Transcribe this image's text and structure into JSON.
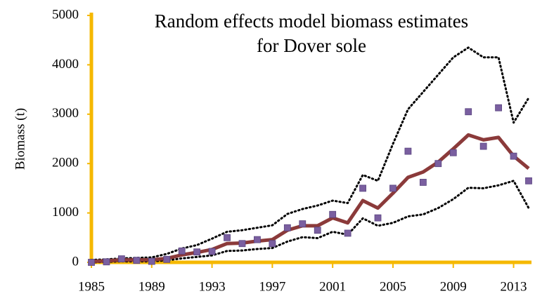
{
  "chart_data": {
    "type": "line",
    "title": [
      "Random effects model biomass estimates",
      "for Dover sole"
    ],
    "ylabel": "Biomass (t)",
    "x": [
      1985,
      1986,
      1987,
      1988,
      1989,
      1990,
      1991,
      1992,
      1993,
      1994,
      1995,
      1996,
      1997,
      1998,
      1999,
      2000,
      2001,
      2002,
      2003,
      2004,
      2005,
      2006,
      2007,
      2008,
      2009,
      2010,
      2011,
      2012,
      2013,
      2014
    ],
    "xlim": [
      1985,
      2014
    ],
    "xticks": [
      1985,
      1989,
      1993,
      1997,
      2001,
      2005,
      2009,
      2013
    ],
    "ylim": [
      0,
      5000
    ],
    "yticks": [
      0,
      1000,
      2000,
      3000,
      4000,
      5000
    ],
    "axis_color": "#f5b800",
    "series": [
      {
        "type": "line",
        "style": "dotted",
        "color": "#000000",
        "values": [
          50,
          60,
          80,
          90,
          100,
          170,
          280,
          350,
          480,
          620,
          650,
          700,
          750,
          980,
          1080,
          1150,
          1250,
          1200,
          1770,
          1650,
          2400,
          3100,
          3450,
          3800,
          4150,
          4350,
          4150,
          4150,
          2830,
          3330
        ]
      },
      {
        "type": "line",
        "style": "dotted",
        "color": "#000000",
        "values": [
          0,
          10,
          20,
          20,
          20,
          40,
          80,
          110,
          140,
          230,
          240,
          270,
          290,
          420,
          510,
          490,
          620,
          560,
          890,
          740,
          800,
          930,
          970,
          1100,
          1280,
          1510,
          1500,
          1560,
          1650,
          1100
        ]
      },
      {
        "type": "line",
        "style": "solid",
        "color": "#8b3a3a",
        "values": [
          20,
          30,
          50,
          50,
          50,
          80,
          150,
          200,
          260,
          380,
          390,
          430,
          460,
          650,
          740,
          740,
          900,
          800,
          1250,
          1100,
          1400,
          1720,
          1830,
          2030,
          2300,
          2580,
          2480,
          2530,
          2150,
          1900
        ]
      },
      {
        "type": "scatter",
        "marker": "square",
        "color": "#7a5fa0",
        "values": [
          0,
          10,
          70,
          40,
          20,
          60,
          230,
          210,
          220,
          500,
          380,
          460,
          380,
          700,
          780,
          650,
          970,
          590,
          1500,
          900,
          1500,
          2250,
          1620,
          2000,
          2220,
          3050,
          2350,
          3130,
          2150,
          1650
        ]
      }
    ]
  }
}
